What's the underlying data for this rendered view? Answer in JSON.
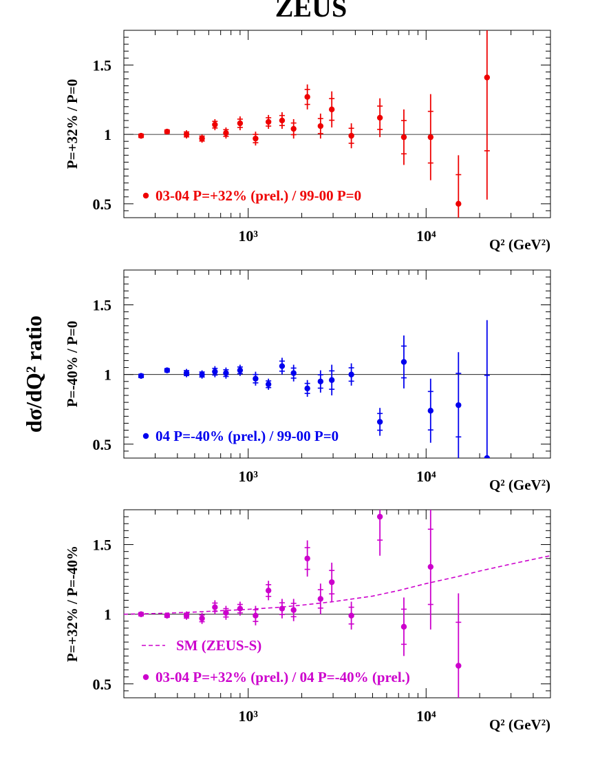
{
  "figure_title": "ZEUS",
  "common_ylabel": "dσ/dQ² ratio",
  "colors": {
    "panel1": "#ee0000",
    "panel2": "#0000ee",
    "panel3": "#cc00cc",
    "axis": "#000000"
  },
  "chart_data": [
    {
      "type": "scatter",
      "scale_x": "log",
      "xlim": [
        200,
        50000
      ],
      "ylim": [
        0.4,
        1.75
      ],
      "xlabel": "Q² (GeV²)",
      "ylabel": "P=+32% / P=0",
      "x_ticks": [
        {
          "value": 1000,
          "label": "10³"
        },
        {
          "value": 10000,
          "label": "10⁴"
        }
      ],
      "y_ticks": [
        {
          "value": 0.5,
          "label": "0.5"
        },
        {
          "value": 1,
          "label": "1"
        },
        {
          "value": 1.5,
          "label": "1.5"
        }
      ],
      "reference_line": 1,
      "legend": "03-04 P=+32% (prel.) / 99-00 P=0",
      "legend_position": "bottom-left",
      "series": [
        {
          "name": "03-04 P=+32% (prel.) / 99-00 P=0",
          "x": [
            250,
            350,
            450,
            550,
            650,
            750,
            900,
            1100,
            1300,
            1550,
            1800,
            2150,
            2550,
            2950,
            3800,
            5500,
            7500,
            10600,
            15200,
            22000
          ],
          "y": [
            0.99,
            1.02,
            1.0,
            0.97,
            1.07,
            1.01,
            1.08,
            0.97,
            1.09,
            1.1,
            1.04,
            1.27,
            1.06,
            1.18,
            0.99,
            1.12,
            0.98,
            0.98,
            0.5,
            1.41
          ],
          "err": [
            0.02,
            0.02,
            0.03,
            0.03,
            0.04,
            0.04,
            0.05,
            0.05,
            0.05,
            0.06,
            0.07,
            0.09,
            0.09,
            0.13,
            0.09,
            0.14,
            0.2,
            0.31,
            0.35,
            0.88
          ]
        }
      ]
    },
    {
      "type": "scatter",
      "scale_x": "log",
      "xlim": [
        200,
        50000
      ],
      "ylim": [
        0.4,
        1.75
      ],
      "xlabel": "Q² (GeV²)",
      "ylabel": "P=-40% / P=0",
      "x_ticks": [
        {
          "value": 1000,
          "label": "10³"
        },
        {
          "value": 10000,
          "label": "10⁴"
        }
      ],
      "y_ticks": [
        {
          "value": 0.5,
          "label": "0.5"
        },
        {
          "value": 1,
          "label": "1"
        },
        {
          "value": 1.5,
          "label": "1.5"
        }
      ],
      "reference_line": 1,
      "legend": "04 P=-40% (prel.) / 99-00 P=0",
      "legend_position": "bottom-left",
      "series": [
        {
          "name": "04 P=-40% (prel.) / 99-00 P=0",
          "x": [
            250,
            350,
            450,
            550,
            650,
            750,
            900,
            1100,
            1300,
            1550,
            1800,
            2150,
            2550,
            2950,
            3800,
            5500,
            7500,
            10600,
            15200,
            22000
          ],
          "y": [
            0.99,
            1.03,
            1.01,
            1.0,
            1.02,
            1.01,
            1.03,
            0.97,
            0.93,
            1.06,
            1.01,
            0.9,
            0.95,
            0.96,
            1.0,
            0.66,
            1.09,
            0.74,
            0.78,
            0.4
          ],
          "err": [
            0.02,
            0.02,
            0.03,
            0.03,
            0.04,
            0.04,
            0.04,
            0.05,
            0.04,
            0.06,
            0.06,
            0.06,
            0.08,
            0.11,
            0.08,
            0.1,
            0.19,
            0.23,
            0.38,
            0.99
          ]
        }
      ]
    },
    {
      "type": "scatter",
      "scale_x": "log",
      "xlim": [
        200,
        50000
      ],
      "ylim": [
        0.4,
        1.75
      ],
      "xlabel": "Q² (GeV²)",
      "ylabel": "P=+32% / P=-40%",
      "x_ticks": [
        {
          "value": 1000,
          "label": "10³"
        },
        {
          "value": 10000,
          "label": "10⁴"
        }
      ],
      "y_ticks": [
        {
          "value": 0.5,
          "label": "0.5"
        },
        {
          "value": 1,
          "label": "1"
        },
        {
          "value": 1.5,
          "label": "1.5"
        }
      ],
      "reference_line": 1,
      "legend": "03-04 P=+32% (prel.) / 04 P=-40% (prel.)",
      "legend_position": "bottom-left",
      "curve_label": "SM (ZEUS-S)",
      "curve": {
        "x": [
          200,
          300,
          500,
          700,
          1000,
          1500,
          2000,
          3000,
          5000,
          7000,
          10000,
          15000,
          20000,
          30000,
          50000
        ],
        "y": [
          1.0,
          1.005,
          1.015,
          1.025,
          1.035,
          1.05,
          1.065,
          1.09,
          1.13,
          1.17,
          1.22,
          1.27,
          1.31,
          1.36,
          1.42
        ]
      },
      "series": [
        {
          "name": "03-04 P=+32% (prel.) / 04 P=-40% (prel.)",
          "x": [
            250,
            350,
            450,
            550,
            650,
            750,
            900,
            1100,
            1300,
            1550,
            1800,
            2150,
            2550,
            2950,
            3800,
            5500,
            7500,
            10600,
            15200
          ],
          "y": [
            1.0,
            0.99,
            0.99,
            0.97,
            1.05,
            1.01,
            1.04,
            0.99,
            1.17,
            1.04,
            1.03,
            1.4,
            1.11,
            1.23,
            0.99,
            1.7,
            0.91,
            1.34,
            0.63
          ],
          "err": [
            0.02,
            0.02,
            0.03,
            0.04,
            0.05,
            0.05,
            0.05,
            0.07,
            0.07,
            0.07,
            0.08,
            0.13,
            0.11,
            0.14,
            0.1,
            0.28,
            0.21,
            0.45,
            0.52
          ]
        }
      ]
    }
  ]
}
